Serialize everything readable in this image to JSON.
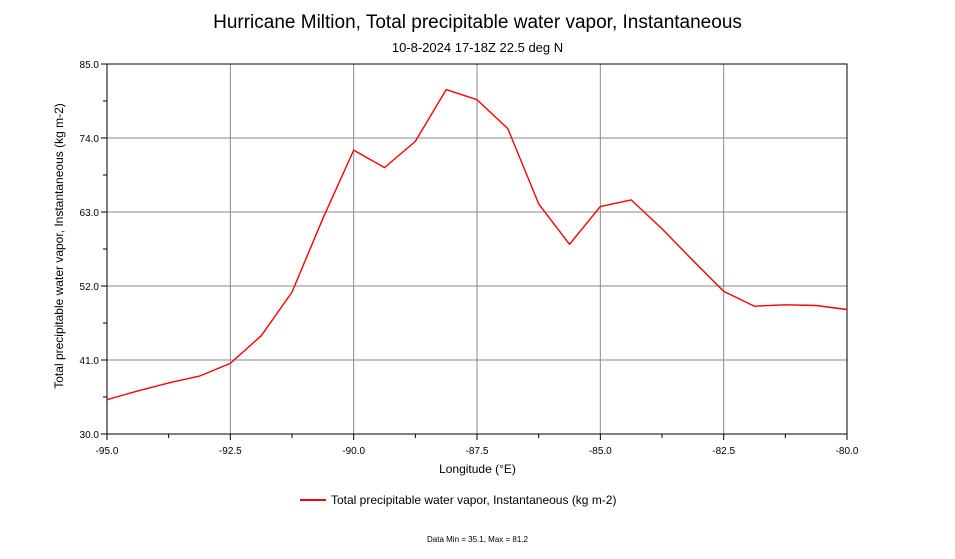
{
  "chart_data": {
    "type": "line",
    "title": "Hurricane Miltion, Total precipitable water vapor, Instantaneous",
    "subtitle": "10-8-2024 17-18Z 22.5 deg N",
    "xlabel": "Longitude (°E)",
    "ylabel": "Total precipitable water vapor, Instantaneous (kg m-2)",
    "xlim": [
      -95.0,
      -80.0
    ],
    "ylim": [
      30.0,
      85.0
    ],
    "xticks": [
      -95.0,
      -92.5,
      -90.0,
      -87.5,
      -85.0,
      -82.5,
      -80.0
    ],
    "xtick_labels": [
      "-95.0",
      "-92.5",
      "-90.0",
      "-87.5",
      "-85.0",
      "-82.5",
      "-80.0"
    ],
    "yticks": [
      30.0,
      41.0,
      52.0,
      63.0,
      74.0,
      85.0
    ],
    "ytick_labels": [
      "30.0",
      "41.0",
      "52.0",
      "63.0",
      "74.0",
      "85.0"
    ],
    "grid": true,
    "legend_position": "bottom",
    "series": [
      {
        "name": "Total precipitable water vapor, Instantaneous (kg m-2)",
        "color": "#ff0000",
        "x": [
          -95.0,
          -94.375,
          -93.75,
          -93.125,
          -92.5,
          -91.875,
          -91.25,
          -90.625,
          -90.0,
          -89.375,
          -88.75,
          -88.125,
          -87.5,
          -86.875,
          -86.25,
          -85.625,
          -85.0,
          -84.375,
          -83.75,
          -83.125,
          -82.5,
          -81.875,
          -81.25,
          -80.625,
          -80.0
        ],
        "y": [
          35.1,
          36.4,
          37.6,
          38.6,
          40.5,
          44.6,
          51.1,
          62.0,
          72.2,
          69.6,
          73.5,
          81.2,
          79.7,
          75.4,
          64.2,
          58.2,
          63.8,
          64.8,
          60.5,
          55.8,
          51.2,
          49.0,
          49.2,
          49.1,
          48.5
        ]
      }
    ]
  },
  "footnote": "Data Min = 35.1, Max = 81.2"
}
